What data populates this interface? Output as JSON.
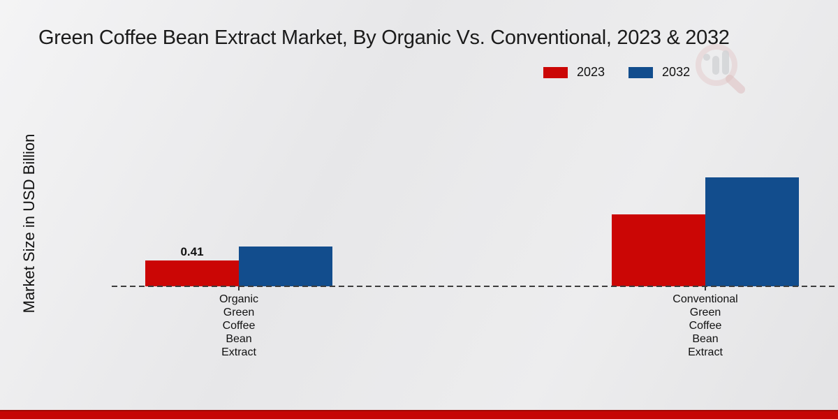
{
  "title": "Green Coffee Bean Extract Market, By Organic Vs. Conventional, 2023 & 2032",
  "chart_data": {
    "type": "bar",
    "title": "Green Coffee Bean Extract Market, By Organic Vs. Conventional, 2023 & 2032",
    "ylabel": "Market Size in USD Billion",
    "xlabel": "",
    "legend_position": "top-right",
    "grid": false,
    "baseline_style": "dashed",
    "ylim": [
      0,
      2
    ],
    "categories": [
      {
        "name": "Organic Green Coffee Bean Extract",
        "lines": [
          "Organic",
          "Green",
          "Coffee",
          "Bean",
          "Extract"
        ]
      },
      {
        "name": "Conventional Green Coffee Bean Extract",
        "lines": [
          "Conventional",
          "Green",
          "Coffee",
          "Bean",
          "Extract"
        ]
      }
    ],
    "series": [
      {
        "name": "2023",
        "color": "#cb0605",
        "values": [
          0.41,
          1.14
        ],
        "labels": [
          "0.41",
          ""
        ]
      },
      {
        "name": "2032",
        "color": "#124d8d",
        "values": [
          0.63,
          1.73
        ],
        "labels": [
          "",
          ""
        ]
      }
    ]
  },
  "colors": {
    "accent_red": "#cb0605",
    "accent_blue": "#124d8d",
    "footer_bar": "#c50605",
    "footer_bar_edge": "#9e0b07",
    "background": "#e9e9ea",
    "text": "#1a1a1a"
  }
}
